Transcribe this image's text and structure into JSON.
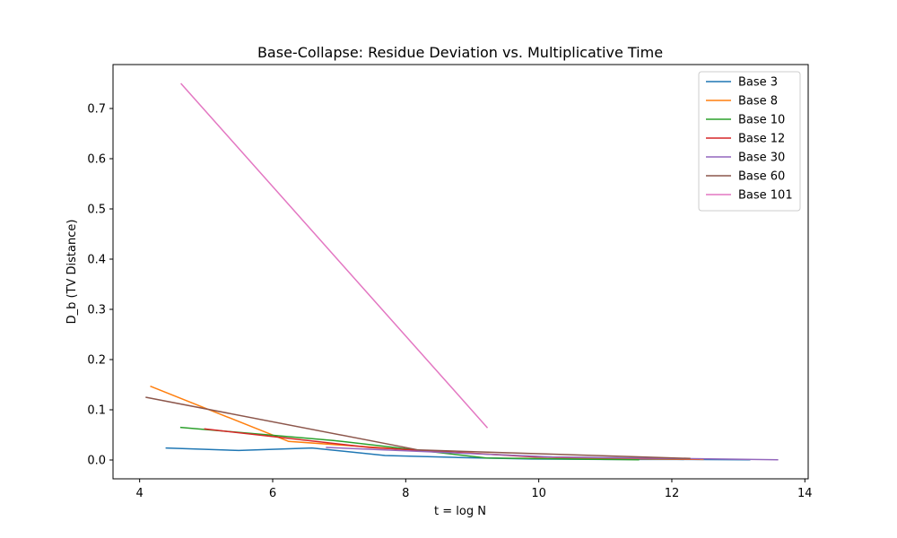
{
  "chart_data": {
    "type": "line",
    "title": "Base-Collapse: Residue Deviation vs. Multiplicative Time",
    "xlabel": "t = log N",
    "ylabel": "D_b (TV Distance)",
    "xlim": [
      3.6,
      14.05
    ],
    "ylim": [
      -0.0375,
      0.7875
    ],
    "xticks": [
      4,
      6,
      8,
      10,
      12,
      14
    ],
    "yticks": [
      0.0,
      0.1,
      0.2,
      0.3,
      0.4,
      0.5,
      0.6,
      0.7
    ],
    "xtick_labels": [
      "4",
      "6",
      "8",
      "10",
      "12",
      "14"
    ],
    "ytick_labels": [
      "0.0",
      "0.1",
      "0.2",
      "0.3",
      "0.4",
      "0.5",
      "0.6",
      "0.7"
    ],
    "grid": false,
    "legend_position": "top-right",
    "series": [
      {
        "name": "Base 3",
        "color": "#1f77b4",
        "x": [
          4.39,
          5.49,
          6.59,
          7.69,
          8.79,
          9.89,
          10.99,
          12.08,
          13.18
        ],
        "y": [
          0.024,
          0.019,
          0.024,
          0.009,
          0.005,
          0.002,
          0.001,
          0.001,
          0.0003
        ]
      },
      {
        "name": "Base 8",
        "color": "#ff7f0e",
        "x": [
          4.16,
          6.24,
          8.32,
          10.4,
          12.48
        ],
        "y": [
          0.147,
          0.037,
          0.018,
          0.004,
          0.001
        ]
      },
      {
        "name": "Base 10",
        "color": "#2ca02c",
        "x": [
          4.61,
          6.91,
          9.21,
          11.51
        ],
        "y": [
          0.065,
          0.039,
          0.004,
          0.0005
        ]
      },
      {
        "name": "Base 12",
        "color": "#d62728",
        "x": [
          4.97,
          7.45,
          9.94,
          12.42
        ],
        "y": [
          0.062,
          0.025,
          0.006,
          0.002
        ]
      },
      {
        "name": "Base 30",
        "color": "#9467bd",
        "x": [
          6.8,
          10.2,
          13.6
        ],
        "y": [
          0.025,
          0.006,
          0.0005
        ]
      },
      {
        "name": "Base 60",
        "color": "#8c564b",
        "x": [
          4.09,
          8.19,
          12.28
        ],
        "y": [
          0.125,
          0.02,
          0.003
        ]
      },
      {
        "name": "Base 101",
        "color": "#e377c2",
        "x": [
          4.62,
          9.23
        ],
        "y": [
          0.75,
          0.064
        ]
      }
    ]
  }
}
